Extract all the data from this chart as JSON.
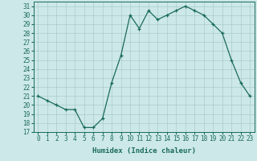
{
  "x": [
    0,
    1,
    2,
    3,
    4,
    5,
    6,
    7,
    8,
    9,
    10,
    11,
    12,
    13,
    14,
    15,
    16,
    17,
    18,
    19,
    20,
    21,
    22,
    23
  ],
  "y": [
    21,
    20.5,
    20,
    19.5,
    19.5,
    17.5,
    17.5,
    18.5,
    22.5,
    25.5,
    30,
    28.5,
    30.5,
    29.5,
    30,
    30.5,
    31,
    30.5,
    30,
    29,
    28,
    25,
    22.5,
    21
  ],
  "line_color": "#1a6b5a",
  "marker": "+",
  "marker_size": 3,
  "bg_color": "#cde8e8",
  "grid_color": "#b0d0d0",
  "xlabel": "Humidex (Indice chaleur)",
  "xlim": [
    -0.5,
    23.5
  ],
  "ylim": [
    17,
    31.5
  ],
  "yticks": [
    17,
    18,
    19,
    20,
    21,
    22,
    23,
    24,
    25,
    26,
    27,
    28,
    29,
    30,
    31
  ],
  "xticks": [
    0,
    1,
    2,
    3,
    4,
    5,
    6,
    7,
    8,
    9,
    10,
    11,
    12,
    13,
    14,
    15,
    16,
    17,
    18,
    19,
    20,
    21,
    22,
    23
  ],
  "tick_fontsize": 5.5,
  "label_fontsize": 6.5
}
